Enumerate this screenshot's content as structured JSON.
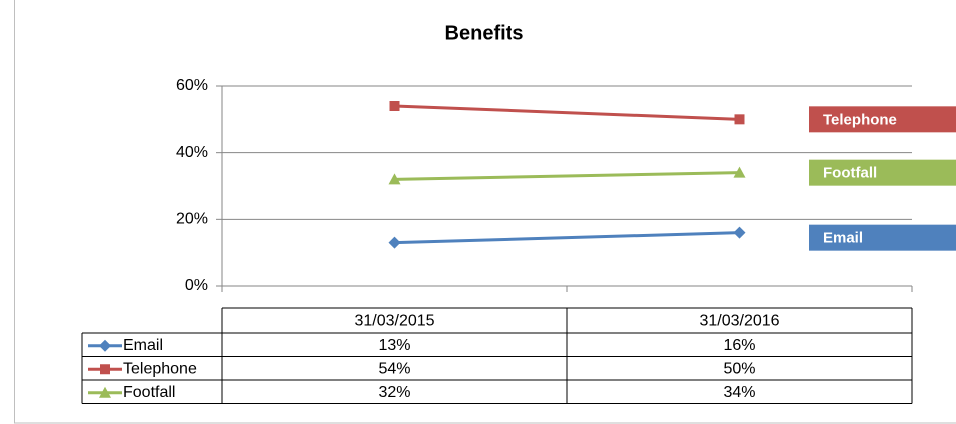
{
  "chart_data": {
    "type": "line",
    "title": "Benefits",
    "categories": [
      "31/03/2015",
      "31/03/2016"
    ],
    "series": [
      {
        "name": "Email",
        "color": "#4f81bd",
        "marker": "diamond",
        "values": [
          13,
          16
        ],
        "value_labels": [
          "13%",
          "16%"
        ]
      },
      {
        "name": "Telephone",
        "color": "#c0504d",
        "marker": "square",
        "values": [
          54,
          50
        ],
        "value_labels": [
          "54%",
          "50%"
        ]
      },
      {
        "name": "Footfall",
        "color": "#9bbb59",
        "marker": "triangle",
        "values": [
          32,
          34
        ],
        "value_labels": [
          "32%",
          "34%"
        ]
      }
    ],
    "ylim": [
      0,
      60
    ],
    "yticks": [
      {
        "value": 0,
        "label": "0%"
      },
      {
        "value": 20,
        "label": "20%"
      },
      {
        "value": 40,
        "label": "40%"
      },
      {
        "value": 60,
        "label": "60%"
      }
    ],
    "grid": true
  }
}
